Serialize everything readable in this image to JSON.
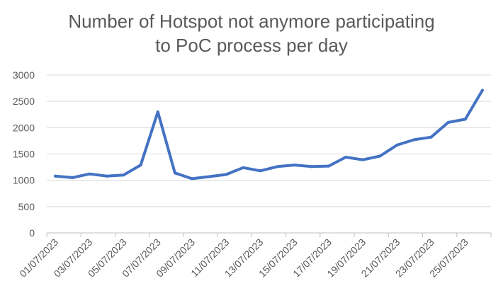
{
  "chart_data": {
    "type": "line",
    "title_lines": [
      "Number of Hotspot not anymore participating",
      "to PoC process per day"
    ],
    "xlabel": "",
    "ylabel": "",
    "ylim": [
      0,
      3000
    ],
    "yticks": [
      0,
      500,
      1000,
      1500,
      2000,
      2500,
      3000
    ],
    "grid": true,
    "legend": "none",
    "x": [
      "01/07/2023",
      "02/07/2023",
      "03/07/2023",
      "04/07/2023",
      "05/07/2023",
      "06/07/2023",
      "07/07/2023",
      "08/07/2023",
      "09/07/2023",
      "10/07/2023",
      "11/07/2023",
      "12/07/2023",
      "13/07/2023",
      "14/07/2023",
      "15/07/2023",
      "16/07/2023",
      "17/07/2023",
      "18/07/2023",
      "19/07/2023",
      "20/07/2023",
      "21/07/2023",
      "22/07/2023",
      "23/07/2023",
      "24/07/2023",
      "25/07/2023",
      "26/07/2023"
    ],
    "x_tick_labels": [
      "01/07/2023",
      "03/07/2023",
      "05/07/2023",
      "07/07/2023",
      "09/07/2023",
      "11/07/2023",
      "13/07/2023",
      "15/07/2023",
      "17/07/2023",
      "19/07/2023",
      "21/07/2023",
      "23/07/2023",
      "25/07/2023"
    ],
    "series": [
      {
        "values": [
          1080,
          1050,
          1120,
          1080,
          1100,
          1290,
          2300,
          1140,
          1030,
          1070,
          1110,
          1240,
          1180,
          1260,
          1290,
          1260,
          1270,
          1440,
          1390,
          1460,
          1670,
          1770,
          1820,
          2100,
          2160,
          2710
        ],
        "color": "#4472C4"
      }
    ]
  }
}
